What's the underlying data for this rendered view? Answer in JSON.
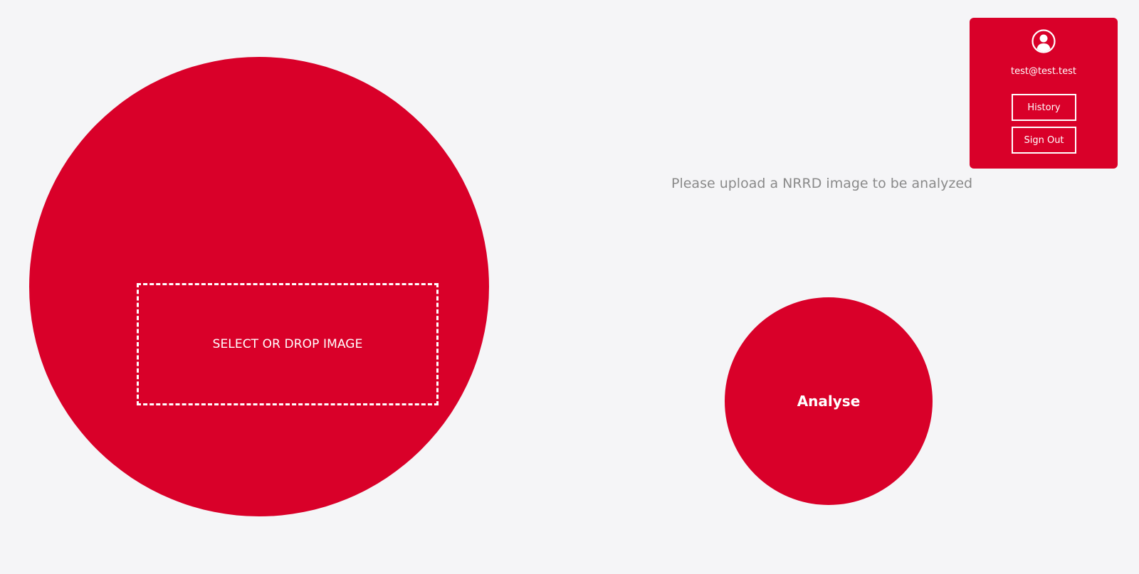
{
  "upload": {
    "drop_label": "SELECT OR DROP IMAGE"
  },
  "prompt": {
    "text": "Please upload a NRRD image to be analyzed"
  },
  "actions": {
    "analyse_label": "Analyse"
  },
  "user_menu": {
    "avatar_icon": "user-circle-icon",
    "email": "test@test.test",
    "history_label": "History",
    "signout_label": "Sign Out"
  },
  "colors": {
    "accent": "#d90029",
    "background": "#f5f5f7",
    "muted_text": "#8a8a8a"
  }
}
